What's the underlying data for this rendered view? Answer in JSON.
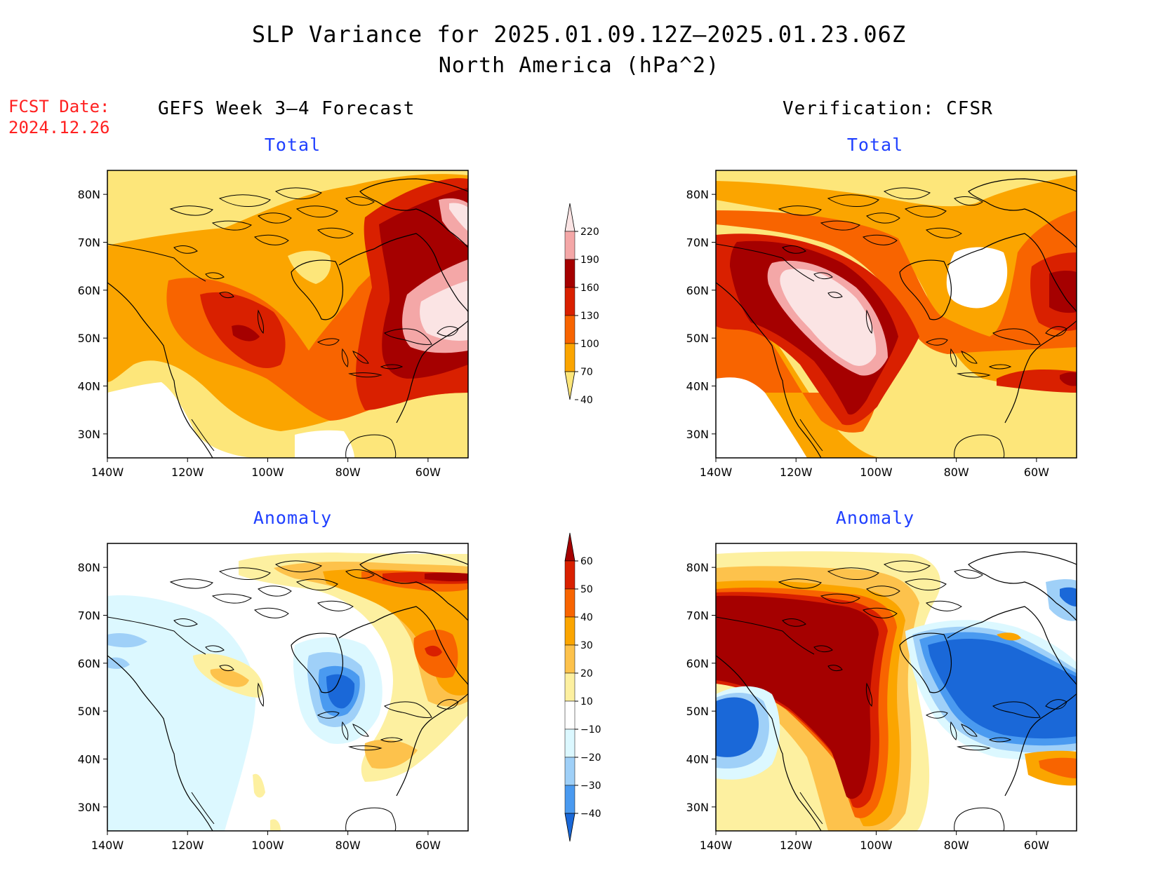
{
  "title": "SLP Variance for 2025.01.09.12Z—2025.01.23.06Z",
  "subtitle": "North America (hPa^2)",
  "fcst_date": {
    "label": "FCST Date:",
    "value": "2024.12.26"
  },
  "columns": {
    "forecast": "GEFS Week 3—4 Forecast",
    "verification": "Verification: CFSR"
  },
  "panels": {
    "forecast_total": "Total",
    "verification_total": "Total",
    "forecast_anomaly": "Anomaly",
    "verification_anomaly": "Anomaly"
  },
  "map_axes": {
    "lon_labels": [
      "140W",
      "120W",
      "100W",
      "80W",
      "60W"
    ],
    "lat_labels": [
      "80N",
      "70N",
      "60N",
      "50N",
      "40N",
      "30N"
    ],
    "lon_range": [
      -140,
      -50
    ],
    "lat_range": [
      25,
      85
    ]
  },
  "colorbars": {
    "total": {
      "levels": [
        "220",
        "190",
        "160",
        "130",
        "100",
        "70",
        "40"
      ],
      "colors": [
        "#fbe4e4",
        "#f4a7a7",
        "#a50000",
        "#d92000",
        "#f86400",
        "#fba500",
        "#fde67a"
      ]
    },
    "anomaly": {
      "levels": [
        "60",
        "50",
        "40",
        "30",
        "20",
        "10",
        "−10",
        "−20",
        "−30",
        "−40"
      ],
      "colors": [
        "#a50000",
        "#d92000",
        "#f86400",
        "#fba500",
        "#fdc24c",
        "#fdf0a0",
        "#ffffff",
        "#dcf8ff",
        "#9fd0f8",
        "#4a9af0",
        "#1a68d8"
      ]
    }
  }
}
